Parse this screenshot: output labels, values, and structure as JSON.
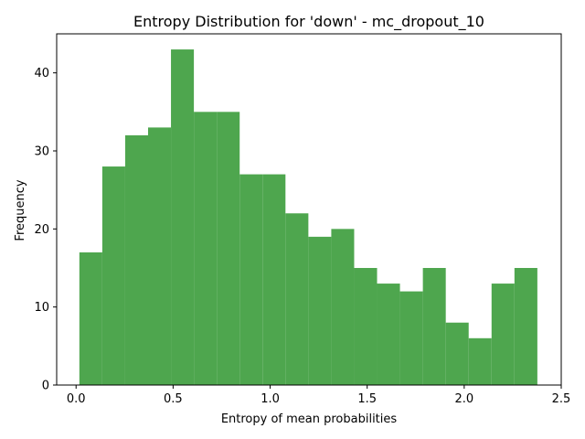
{
  "chart_data": {
    "type": "bar",
    "title": "Entropy Distribution for 'down' - mc_dropout_10",
    "xlabel": "Entropy of mean probabilities",
    "ylabel": "Frequency",
    "xlim": [
      -0.1,
      2.5
    ],
    "ylim": [
      0,
      45
    ],
    "xticks": [
      0.0,
      0.5,
      1.0,
      1.5,
      2.0,
      2.5
    ],
    "xtick_labels": [
      "0.0",
      "0.5",
      "1.0",
      "1.5",
      "2.0",
      "2.5"
    ],
    "yticks": [
      0,
      10,
      20,
      30,
      40
    ],
    "ytick_labels": [
      "0",
      "10",
      "20",
      "30",
      "40"
    ],
    "bin_edges": [
      0.017,
      0.135,
      0.253,
      0.371,
      0.489,
      0.607,
      0.725,
      0.843,
      0.961,
      1.079,
      1.197,
      1.315,
      1.433,
      1.551,
      1.669,
      1.787,
      1.905,
      2.023,
      2.141,
      2.259,
      2.377
    ],
    "values": [
      17,
      28,
      32,
      33,
      43,
      35,
      35,
      27,
      27,
      22,
      19,
      20,
      15,
      13,
      12,
      15,
      8,
      6,
      13,
      15
    ],
    "color": "#4ea64e",
    "grid": false,
    "legend": false
  }
}
